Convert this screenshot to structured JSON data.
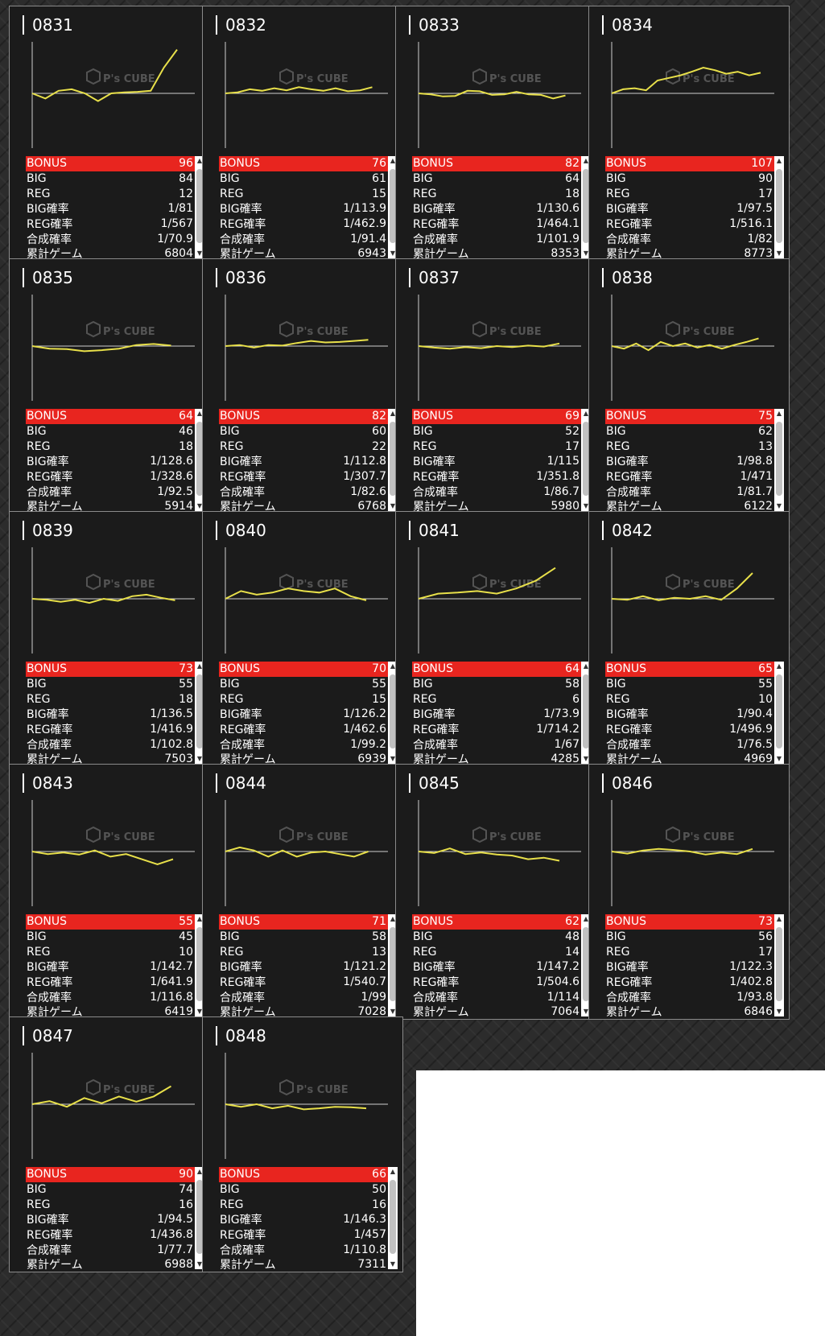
{
  "watermark": {
    "text": "P's CUBE"
  },
  "colors": {
    "accent": "#e8251f",
    "line": "#e8e04a",
    "card_bg": "#1b1b1b"
  },
  "labels": {
    "bonus": "BONUS",
    "big": "BIG",
    "reg": "REG",
    "big_rate": "BIG確率",
    "reg_rate": "REG確率",
    "total_rate": "合成確率",
    "games": "累計ゲーム"
  },
  "machines": [
    {
      "id": "0831",
      "bonus": "96",
      "big": "84",
      "reg": "12",
      "big_rate": "1/81",
      "reg_rate": "1/567",
      "total_rate": "1/70.9",
      "games": "6804",
      "trend": [
        0,
        -0.1,
        0.05,
        0.08,
        0,
        -0.15,
        0,
        0.02,
        0.03,
        0.05,
        0.5,
        0.85
      ]
    },
    {
      "id": "0832",
      "bonus": "76",
      "big": "61",
      "reg": "15",
      "big_rate": "1/113.9",
      "reg_rate": "1/462.9",
      "total_rate": "1/91.4",
      "games": "6943",
      "trend": [
        0,
        0.02,
        0.08,
        0.05,
        0.1,
        0.06,
        0.12,
        0.08,
        0.05,
        0.1,
        0.04,
        0.06,
        0.12
      ]
    },
    {
      "id": "0833",
      "bonus": "82",
      "big": "64",
      "reg": "18",
      "big_rate": "1/130.6",
      "reg_rate": "1/464.1",
      "total_rate": "1/101.9",
      "games": "8353",
      "trend": [
        0,
        -0.02,
        -0.06,
        -0.05,
        0.05,
        0.04,
        -0.03,
        -0.02,
        0.03,
        -0.02,
        -0.03,
        -0.1,
        -0.04
      ]
    },
    {
      "id": "0834",
      "bonus": "107",
      "big": "90",
      "reg": "17",
      "big_rate": "1/97.5",
      "reg_rate": "1/516.1",
      "total_rate": "1/82",
      "games": "8773",
      "trend": [
        0,
        0.08,
        0.1,
        0.06,
        0.25,
        0.3,
        0.35,
        0.42,
        0.5,
        0.45,
        0.38,
        0.42,
        0.35,
        0.4
      ]
    },
    {
      "id": "0835",
      "bonus": "64",
      "big": "46",
      "reg": "18",
      "big_rate": "1/128.6",
      "reg_rate": "1/328.6",
      "total_rate": "1/92.5",
      "games": "5914",
      "trend": [
        0,
        -0.05,
        -0.06,
        -0.1,
        -0.08,
        -0.05,
        0.02,
        0.04,
        0.01
      ]
    },
    {
      "id": "0836",
      "bonus": "82",
      "big": "60",
      "reg": "22",
      "big_rate": "1/112.8",
      "reg_rate": "1/307.7",
      "total_rate": "1/82.6",
      "games": "6768",
      "trend": [
        0,
        0.02,
        -0.03,
        0.02,
        0.01,
        0.06,
        0.1,
        0.07,
        0.08,
        0.1,
        0.12
      ]
    },
    {
      "id": "0837",
      "bonus": "69",
      "big": "52",
      "reg": "17",
      "big_rate": "1/115",
      "reg_rate": "1/351.8",
      "total_rate": "1/86.7",
      "games": "5980",
      "trend": [
        0,
        -0.03,
        -0.05,
        -0.02,
        -0.04,
        0,
        -0.02,
        0.01,
        -0.01,
        0.05
      ]
    },
    {
      "id": "0838",
      "bonus": "75",
      "big": "62",
      "reg": "13",
      "big_rate": "1/98.8",
      "reg_rate": "1/471",
      "total_rate": "1/81.7",
      "games": "6122",
      "trend": [
        0,
        -0.05,
        0.05,
        -0.08,
        0.08,
        0,
        0.05,
        -0.03,
        0.02,
        -0.05,
        0.02,
        0.08,
        0.15
      ]
    },
    {
      "id": "0839",
      "bonus": "73",
      "big": "55",
      "reg": "18",
      "big_rate": "1/136.5",
      "reg_rate": "1/416.9",
      "total_rate": "1/102.8",
      "games": "7503",
      "trend": [
        0,
        -0.02,
        -0.06,
        -0.02,
        -0.08,
        0,
        -0.04,
        0.05,
        0.08,
        0.02,
        -0.03
      ]
    },
    {
      "id": "0840",
      "bonus": "70",
      "big": "55",
      "reg": "15",
      "big_rate": "1/126.2",
      "reg_rate": "1/462.6",
      "total_rate": "1/99.2",
      "games": "6939",
      "trend": [
        0,
        0.15,
        0.08,
        0.12,
        0.2,
        0.15,
        0.12,
        0.2,
        0.05,
        -0.03
      ]
    },
    {
      "id": "0841",
      "bonus": "64",
      "big": "58",
      "reg": "6",
      "big_rate": "1/73.9",
      "reg_rate": "1/714.2",
      "total_rate": "1/67",
      "games": "4285",
      "trend": [
        0,
        0.1,
        0.12,
        0.15,
        0.1,
        0.2,
        0.35,
        0.6
      ]
    },
    {
      "id": "0842",
      "bonus": "65",
      "big": "55",
      "reg": "10",
      "big_rate": "1/90.4",
      "reg_rate": "1/496.9",
      "total_rate": "1/76.5",
      "games": "4969",
      "trend": [
        0,
        -0.02,
        0.05,
        -0.03,
        0.02,
        0,
        0.05,
        -0.02,
        0.2,
        0.5
      ]
    },
    {
      "id": "0843",
      "bonus": "55",
      "big": "45",
      "reg": "10",
      "big_rate": "1/142.7",
      "reg_rate": "1/641.9",
      "total_rate": "1/116.8",
      "games": "6419",
      "trend": [
        0,
        -0.05,
        -0.02,
        -0.06,
        0.02,
        -0.1,
        -0.05,
        -0.15,
        -0.25,
        -0.15
      ]
    },
    {
      "id": "0844",
      "bonus": "71",
      "big": "58",
      "reg": "13",
      "big_rate": "1/121.2",
      "reg_rate": "1/540.7",
      "total_rate": "1/99",
      "games": "7028",
      "trend": [
        0,
        0.08,
        0.02,
        -0.1,
        0.02,
        -0.1,
        -0.02,
        0,
        -0.05,
        -0.1,
        0
      ]
    },
    {
      "id": "0845",
      "bonus": "62",
      "big": "48",
      "reg": "14",
      "big_rate": "1/147.2",
      "reg_rate": "1/504.6",
      "total_rate": "1/114",
      "games": "7064",
      "trend": [
        0,
        -0.03,
        0.06,
        -0.05,
        -0.02,
        -0.06,
        -0.08,
        -0.15,
        -0.12,
        -0.18
      ]
    },
    {
      "id": "0846",
      "bonus": "73",
      "big": "56",
      "reg": "17",
      "big_rate": "1/122.3",
      "reg_rate": "1/402.8",
      "total_rate": "1/93.8",
      "games": "6846",
      "trend": [
        0,
        -0.04,
        0.02,
        0.05,
        0.03,
        0,
        -0.06,
        -0.02,
        -0.05,
        0.05
      ]
    },
    {
      "id": "0847",
      "bonus": "90",
      "big": "74",
      "reg": "16",
      "big_rate": "1/94.5",
      "reg_rate": "1/436.8",
      "total_rate": "1/77.7",
      "games": "6988",
      "trend": [
        0,
        0.06,
        -0.05,
        0.12,
        0.02,
        0.15,
        0.05,
        0.15,
        0.35
      ]
    },
    {
      "id": "0848",
      "bonus": "66",
      "big": "50",
      "reg": "16",
      "big_rate": "1/146.3",
      "reg_rate": "1/457",
      "total_rate": "1/110.8",
      "games": "7311",
      "trend": [
        0,
        -0.05,
        0,
        -0.08,
        -0.03,
        -0.1,
        -0.08,
        -0.05,
        -0.06,
        -0.08
      ]
    }
  ]
}
